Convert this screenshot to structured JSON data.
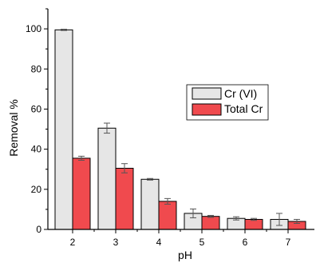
{
  "chart_data": {
    "type": "bar",
    "xlabel": "pH",
    "ylabel": "Removal %",
    "ylim": [
      0,
      110
    ],
    "yticks": [
      0,
      20,
      40,
      60,
      80,
      100
    ],
    "categories": [
      "2",
      "3",
      "4",
      "5",
      "6",
      "7"
    ],
    "legend_position": "right",
    "series": [
      {
        "name": "Cr (VI)",
        "color": "#e6e6e6",
        "values": [
          99.5,
          50.5,
          25,
          8,
          5.5,
          5
        ],
        "errors": [
          0.3,
          2.5,
          0.4,
          2.2,
          0.8,
          3
        ]
      },
      {
        "name": "Total Cr",
        "color": "#f04a4e",
        "values": [
          35.5,
          30.5,
          14,
          6.5,
          5,
          4
        ],
        "errors": [
          1,
          2.3,
          1.4,
          0.5,
          0.5,
          1
        ]
      }
    ]
  }
}
